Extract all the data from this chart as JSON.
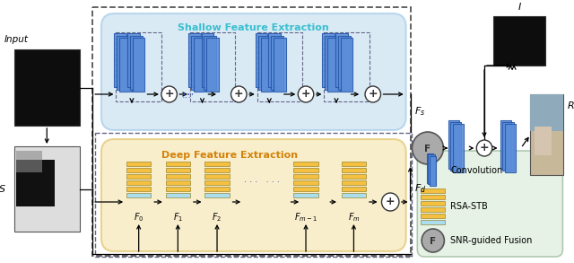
{
  "bg_color": "#ffffff",
  "shallow_label": "Shallow Feature Extraction",
  "shallow_label_color": "#3bbfcf",
  "deep_label": "Deep Feature Extraction",
  "deep_label_color": "#d4820a",
  "fs_label": "$F_s$",
  "fd_label": "$F_d$",
  "input_label": "Input",
  "s_label": "S",
  "i_label": "I",
  "r_label": "R",
  "legend_conv": "Convolution",
  "legend_rsa": "RSA-STB",
  "legend_snr": "SNR-guided Fusion",
  "conv_color": "#5b8dd9",
  "conv_edge": "#2255aa",
  "rsa_bar_colors": [
    "#f5c040",
    "#f5c040",
    "#f5c040",
    "#f5c040",
    "#f5c040",
    "#aaddee"
  ],
  "shallow_fill": "#c5dff0",
  "deep_fill": "#f5e5b0",
  "legend_fill": "#deeedd",
  "outer_dash_color": "#555555",
  "inner_dash_color": "#666688"
}
